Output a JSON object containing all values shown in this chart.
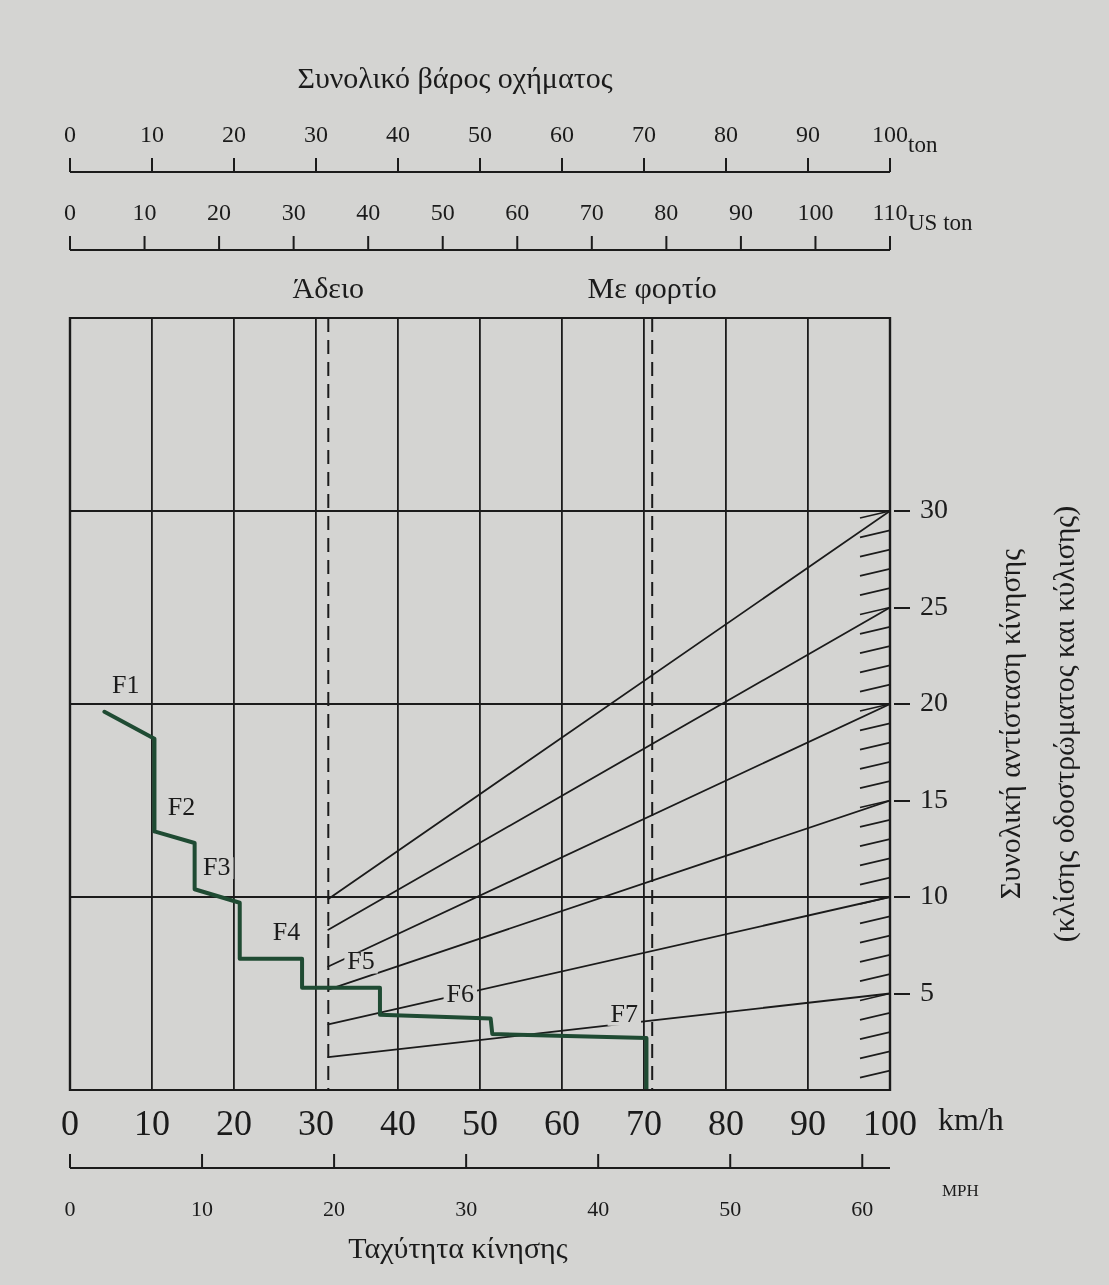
{
  "chart_data": [
    {
      "type": "line",
      "title": "Συνολικό βάρος οχήματος",
      "xlabel": "ton",
      "x2label": "US ton",
      "ylabel": "Συνολική αντίσταση κίνησης\n(κλίσης οδοστρώματος και κύλισης)",
      "xlim": [
        0,
        100
      ],
      "xticks": [
        0,
        10,
        20,
        30,
        40,
        50,
        60,
        70,
        80,
        90,
        100
      ],
      "x2lim": [
        0,
        110
      ],
      "x2ticks": [
        0,
        10,
        20,
        30,
        40,
        50,
        60,
        70,
        80,
        90,
        100,
        110
      ],
      "ylim": [
        0,
        40
      ],
      "yticks": [
        5,
        10,
        15,
        20,
        25,
        30
      ],
      "grid": "x",
      "marker": "none",
      "ref_lines": [
        {
          "axis": "x",
          "value": 31.5,
          "label": "Άδειο",
          "line_style": "dashed",
          "color": "#1b1b1b"
        },
        {
          "axis": "x",
          "value": 71,
          "label": "Με φορτίο",
          "line_style": "dashed",
          "color": "#1b1b1b"
        },
        {
          "axis": "y",
          "value": 10,
          "color": "#1b1b1b"
        },
        {
          "axis": "y",
          "value": 20,
          "color": "#1b1b1b"
        },
        {
          "axis": "y",
          "value": 30,
          "color": "#1b1b1b"
        }
      ],
      "series": [
        {
          "color": "#1b1b1b",
          "x": [
            31.5,
            100
          ],
          "values": [
            9.9,
            30
          ]
        },
        {
          "color": "#1b1b1b",
          "x": [
            31.5,
            100
          ],
          "values": [
            8.3,
            25
          ]
        },
        {
          "color": "#1b1b1b",
          "x": [
            31.5,
            100
          ],
          "values": [
            6.4,
            20
          ]
        },
        {
          "color": "#1b1b1b",
          "x": [
            31.5,
            100
          ],
          "values": [
            5.2,
            15
          ]
        },
        {
          "color": "#1b1b1b",
          "x": [
            31.5,
            100
          ],
          "values": [
            3.4,
            10
          ]
        },
        {
          "color": "#1b1b1b",
          "x": [
            31.5,
            100
          ],
          "values": [
            1.7,
            5
          ]
        }
      ]
    },
    {
      "type": "line",
      "xlabel": "km/h",
      "x2label": "MPH",
      "annotations": [
        "Ταχύτητα κίνησης",
        {
          "text": "F1",
          "x": 6.8,
          "y": 20.9
        },
        {
          "text": "F2",
          "x": 13.6,
          "y": 14.6
        },
        {
          "text": "F3",
          "x": 17.9,
          "y": 11.5
        },
        {
          "text": "F4",
          "x": 26.4,
          "y": 8.1
        },
        {
          "text": "F5",
          "x": 35.5,
          "y": 6.6
        },
        {
          "text": "F6",
          "x": 47.6,
          "y": 4.9
        },
        {
          "text": "F7",
          "x": 67.6,
          "y": 3.9
        }
      ],
      "xlim": [
        0,
        100
      ],
      "xticks": [
        0,
        10,
        20,
        30,
        40,
        50,
        60,
        70,
        80,
        90,
        100
      ],
      "x2lim": [
        0,
        62.1
      ],
      "x2ticks": [
        0,
        10,
        20,
        30,
        40,
        50,
        60
      ],
      "ylim": [
        0,
        40
      ],
      "tick_labels": "x",
      "marker": "none",
      "series": [
        {
          "color": "#1f4b33",
          "x": [
            4.2,
            10.3,
            10.3,
            15.2,
            15.2,
            20.7,
            20.7,
            28.3,
            28.3,
            37.8,
            37.8,
            51.3,
            51.5,
            70.3,
            70.3
          ],
          "values": [
            19.6,
            18.2,
            13.4,
            12.8,
            10.4,
            9.7,
            6.8,
            6.8,
            5.3,
            5.3,
            3.9,
            3.7,
            2.9,
            2.7,
            0
          ]
        }
      ]
    }
  ]
}
